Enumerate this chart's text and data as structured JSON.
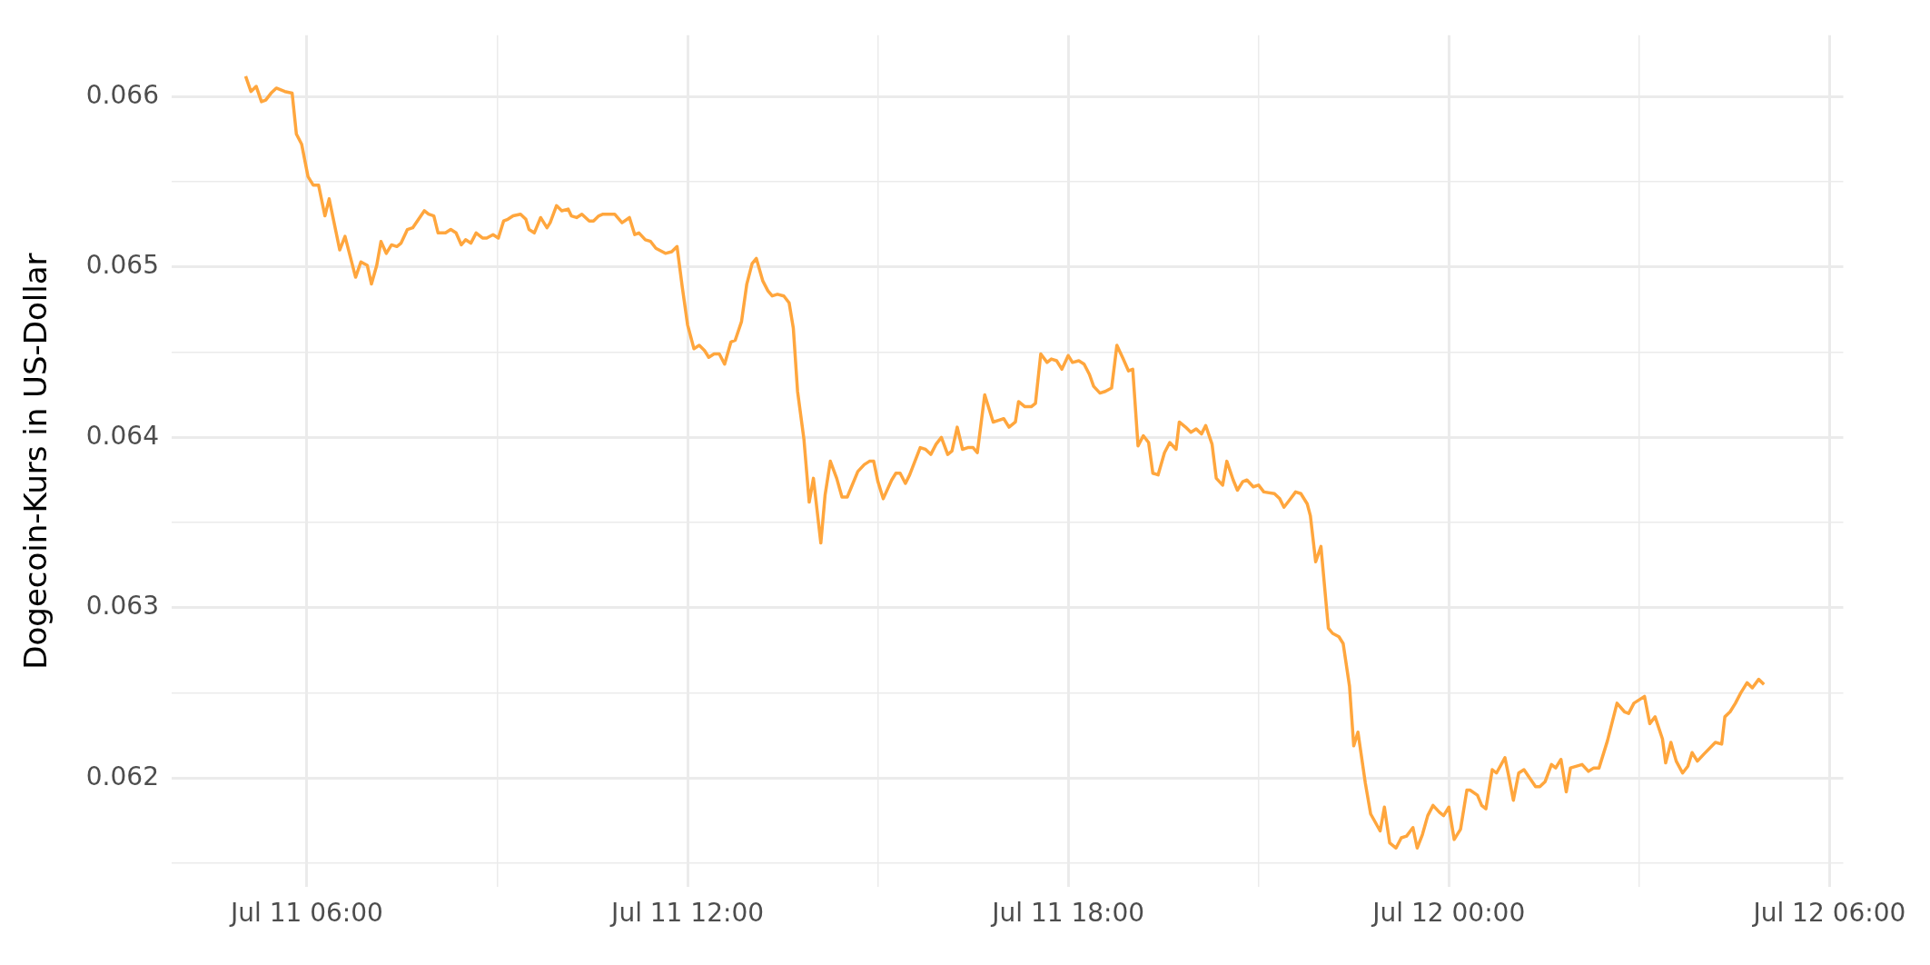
{
  "chart_data": {
    "type": "line",
    "ylabel": "Dogecoin-Kurs in US-Dollar",
    "color": "#ffa63d",
    "grid": true,
    "legend": false,
    "marker": "none",
    "line_style": "solid",
    "xlim": [
      "--07-11T03:52",
      "--07-12T06:13"
    ],
    "xticks": [
      {
        "value": "--07-11T06:00",
        "label": "Jul 11 06:00"
      },
      {
        "value": "--07-11T09:00",
        "label": null
      },
      {
        "value": "--07-11T12:00",
        "label": "Jul 11 12:00"
      },
      {
        "value": "--07-11T15:00",
        "label": null
      },
      {
        "value": "--07-11T18:00",
        "label": "Jul 11 18:00"
      },
      {
        "value": "--07-11T21:00",
        "label": null
      },
      {
        "value": "--07-12T00:00",
        "label": "Jul 12 00:00"
      },
      {
        "value": "--07-12T03:00",
        "label": null
      },
      {
        "value": "--07-12T06:00",
        "label": "Jul 12 06:00"
      }
    ],
    "ylim": [
      0.06136,
      0.06636
    ],
    "yticks": [
      {
        "value": 0.0615,
        "label": null
      },
      0.062,
      {
        "value": 0.0625,
        "label": null
      },
      0.063,
      {
        "value": 0.0635,
        "label": null
      },
      0.064,
      {
        "value": 0.0645,
        "label": null
      },
      0.065,
      {
        "value": 0.0655,
        "label": null
      },
      0.066
    ],
    "x": [
      "--07-11T05:02",
      "--07-11T05:07",
      "--07-11T05:12",
      "--07-11T05:17",
      "--07-11T05:21",
      "--07-11T05:26",
      "--07-11T05:31",
      "--07-11T05:39",
      "--07-11T05:46",
      "--07-11T05:50",
      "--07-11T05:55",
      "--07-11T06:01",
      "--07-11T06:06",
      "--07-11T06:11",
      "--07-11T06:17",
      "--07-11T06:21",
      "--07-11T06:31",
      "--07-11T06:36",
      "--07-11T06:46",
      "--07-11T06:51",
      "--07-11T06:57",
      "--07-11T07:01",
      "--07-11T07:06",
      "--07-11T07:10",
      "--07-11T07:15",
      "--07-11T07:20",
      "--07-11T07:25",
      "--07-11T07:29",
      "--07-11T07:35",
      "--07-11T07:40",
      "--07-11T07:51",
      "--07-11T07:55",
      "--07-11T08:00",
      "--07-11T08:04",
      "--07-11T08:11",
      "--07-11T08:16",
      "--07-11T08:21",
      "--07-11T08:26",
      "--07-11T08:30",
      "--07-11T08:35",
      "--07-11T08:40",
      "--07-11T08:46",
      "--07-11T08:50",
      "--07-11T08:56",
      "--07-11T09:01",
      "--07-11T09:06",
      "--07-11T09:10",
      "--07-11T09:15",
      "--07-11T09:22",
      "--07-11T09:27",
      "--07-11T09:30",
      "--07-11T09:35",
      "--07-11T09:41",
      "--07-11T09:47",
      "--07-11T09:50",
      "--07-11T09:56",
      "--07-11T10:01",
      "--07-11T10:07",
      "--07-11T10:10",
      "--07-11T10:15",
      "--07-11T10:20",
      "--07-11T10:27",
      "--07-11T10:31",
      "--07-11T10:36",
      "--07-11T10:40",
      "--07-11T10:51",
      "--07-11T10:58",
      "--07-11T11:05",
      "--07-11T11:10",
      "--07-11T11:14",
      "--07-11T11:20",
      "--07-11T11:25",
      "--07-11T11:30",
      "--07-11T11:39",
      "--07-11T11:45",
      "--07-11T11:50",
      "--07-11T11:55",
      "--07-11T12:00",
      "--07-11T12:06",
      "--07-11T12:11",
      "--07-11T12:16",
      "--07-11T12:20",
      "--07-11T12:25",
      "--07-11T12:30",
      "--07-11T12:35",
      "--07-11T12:41",
      "--07-11T12:45",
      "--07-11T12:51",
      "--07-11T12:56",
      "--07-11T13:01",
      "--07-11T13:05",
      "--07-11T13:11",
      "--07-11T13:16",
      "--07-11T13:20",
      "--07-11T13:25",
      "--07-11T13:31",
      "--07-11T13:36",
      "--07-11T13:40",
      "--07-11T13:44",
      "--07-11T13:50",
      "--07-11T13:55",
      "--07-11T13:59",
      "--07-11T14:06",
      "--07-11T14:10",
      "--07-11T14:15",
      "--07-11T14:21",
      "--07-11T14:26",
      "--07-11T14:31",
      "--07-11T14:35",
      "--07-11T14:41",
      "--07-11T14:47",
      "--07-11T14:52",
      "--07-11T14:56",
      "--07-11T15:00",
      "--07-11T15:05",
      "--07-11T15:13",
      "--07-11T15:17",
      "--07-11T15:21",
      "--07-11T15:26",
      "--07-11T15:30",
      "--07-11T15:40",
      "--07-11T15:45",
      "--07-11T15:50",
      "--07-11T15:55",
      "--07-11T16:00",
      "--07-11T16:06",
      "--07-11T16:10",
      "--07-11T16:15",
      "--07-11T16:20",
      "--07-11T16:25",
      "--07-11T16:30",
      "--07-11T16:34",
      "--07-11T16:41",
      "--07-11T16:45",
      "--07-11T16:49",
      "--07-11T16:54",
      "--07-11T16:59",
      "--07-11T17:04",
      "--07-11T17:10",
      "--07-11T17:13",
      "--07-11T17:19",
      "--07-11T17:25",
      "--07-11T17:29",
      "--07-11T17:34",
      "--07-11T17:40",
      "--07-11T17:44",
      "--07-11T17:49",
      "--07-11T17:54",
      "--07-11T18:00",
      "--07-11T18:04",
      "--07-11T18:10",
      "--07-11T18:15",
      "--07-11T18:20",
      "--07-11T18:24",
      "--07-11T18:30",
      "--07-11T18:35",
      "--07-11T18:41",
      "--07-11T18:46",
      "--07-11T18:52",
      "--07-11T18:57",
      "--07-11T19:01",
      "--07-11T19:06",
      "--07-11T19:11",
      "--07-11T19:16",
      "--07-11T19:20",
      "--07-11T19:25",
      "--07-11T19:31",
      "--07-11T19:36",
      "--07-11T19:42",
      "--07-11T19:45",
      "--07-11T19:51",
      "--07-11T19:56",
      "--07-11T20:01",
      "--07-11T20:06",
      "--07-11T20:10",
      "--07-11T20:16",
      "--07-11T20:20",
      "--07-11T20:26",
      "--07-11T20:30",
      "--07-11T20:36",
      "--07-11T20:40",
      "--07-11T20:45",
      "--07-11T20:49",
      "--07-11T20:55",
      "--07-11T21:00",
      "--07-11T21:05",
      "--07-11T21:15",
      "--07-11T21:20",
      "--07-11T21:24",
      "--07-11T21:29",
      "--07-11T21:35",
      "--07-11T21:40",
      "--07-11T21:46",
      "--07-11T21:49",
      "--07-11T21:54",
      "--07-11T21:59",
      "--07-11T22:06",
      "--07-11T22:10",
      "--07-11T22:16",
      "--07-11T22:20",
      "--07-11T22:26",
      "--07-11T22:30",
      "--07-11T22:34",
      "--07-11T22:41",
      "--07-11T22:46",
      "--07-11T22:55",
      "--07-11T22:59",
      "--07-11T23:04",
      "--07-11T23:10",
      "--07-11T23:15",
      "--07-11T23:20",
      "--07-11T23:26",
      "--07-11T23:30",
      "--07-11T23:35",
      "--07-11T23:40",
      "--07-11T23:45",
      "--07-11T23:51",
      "--07-11T23:55",
      "--07-12T00:00",
      "--07-12T00:05",
      "--07-12T00:11",
      "--07-12T00:17",
      "--07-12T00:20",
      "--07-12T00:27",
      "--07-12T00:31",
      "--07-12T00:35",
      "--07-12T00:41",
      "--07-12T00:45",
      "--07-12T00:53",
      "--07-12T00:57",
      "--07-12T01:01",
      "--07-12T01:06",
      "--07-12T01:11",
      "--07-12T01:22",
      "--07-12T01:26",
      "--07-12T01:31",
      "--07-12T01:37",
      "--07-12T01:41",
      "--07-12T01:46",
      "--07-12T01:51",
      "--07-12T01:55",
      "--07-12T02:06",
      "--07-12T02:12",
      "--07-12T02:17",
      "--07-12T02:22",
      "--07-12T02:30",
      "--07-12T02:39",
      "--07-12T02:46",
      "--07-12T02:50",
      "--07-12T02:55",
      "--07-12T03:05",
      "--07-12T03:10",
      "--07-12T03:15",
      "--07-12T03:22",
      "--07-12T03:25",
      "--07-12T03:30",
      "--07-12T03:35",
      "--07-12T03:41",
      "--07-12T03:46",
      "--07-12T03:50",
      "--07-12T03:55",
      "--07-12T04:01",
      "--07-12T04:12",
      "--07-12T04:18",
      "--07-12T04:21",
      "--07-12T04:26",
      "--07-12T04:31",
      "--07-12T04:36",
      "--07-12T04:42",
      "--07-12T04:47",
      "--07-12T04:53",
      "--07-12T04:58"
    ],
    "values": [
      0.06612,
      0.06603,
      0.06606,
      0.06597,
      0.06598,
      0.06602,
      0.06605,
      0.06603,
      0.06602,
      0.06578,
      0.06572,
      0.06553,
      0.06548,
      0.06548,
      0.0653,
      0.0654,
      0.0651,
      0.06518,
      0.06494,
      0.06503,
      0.06501,
      0.0649,
      0.06501,
      0.06515,
      0.06508,
      0.06513,
      0.06512,
      0.06514,
      0.06522,
      0.06523,
      0.06533,
      0.06531,
      0.0653,
      0.0652,
      0.0652,
      0.06522,
      0.0652,
      0.06513,
      0.06516,
      0.06514,
      0.0652,
      0.06517,
      0.06517,
      0.06519,
      0.06517,
      0.06527,
      0.06528,
      0.0653,
      0.06531,
      0.06528,
      0.06522,
      0.0652,
      0.06529,
      0.06523,
      0.06526,
      0.06536,
      0.06533,
      0.06534,
      0.0653,
      0.06529,
      0.06531,
      0.06527,
      0.06527,
      0.0653,
      0.06531,
      0.06531,
      0.06526,
      0.06529,
      0.06519,
      0.0652,
      0.06516,
      0.06515,
      0.06511,
      0.06508,
      0.06509,
      0.06512,
      0.06488,
      0.06466,
      0.06452,
      0.06454,
      0.06451,
      0.06447,
      0.06449,
      0.06449,
      0.06443,
      0.06456,
      0.06457,
      0.06468,
      0.0649,
      0.06502,
      0.06505,
      0.06492,
      0.06486,
      0.06483,
      0.06484,
      0.06483,
      0.06479,
      0.06464,
      0.06427,
      0.06399,
      0.06362,
      0.06376,
      0.06338,
      0.06366,
      0.06386,
      0.06376,
      0.06365,
      0.06365,
      0.06371,
      0.0638,
      0.06384,
      0.06386,
      0.06386,
      0.06374,
      0.06364,
      0.06375,
      0.06379,
      0.06379,
      0.06373,
      0.06378,
      0.06394,
      0.06393,
      0.0639,
      0.06396,
      0.064,
      0.0639,
      0.06392,
      0.06406,
      0.06393,
      0.06394,
      0.06394,
      0.06391,
      0.06425,
      0.06417,
      0.06409,
      0.0641,
      0.06411,
      0.06406,
      0.06409,
      0.06421,
      0.06418,
      0.06418,
      0.0642,
      0.06449,
      0.06444,
      0.06446,
      0.06445,
      0.0644,
      0.06448,
      0.06444,
      0.06445,
      0.06443,
      0.06437,
      0.0643,
      0.06426,
      0.06427,
      0.06429,
      0.06454,
      0.06446,
      0.06439,
      0.0644,
      0.06395,
      0.06401,
      0.06397,
      0.06379,
      0.06378,
      0.06391,
      0.06397,
      0.06393,
      0.06409,
      0.06406,
      0.06403,
      0.06405,
      0.06402,
      0.06407,
      0.06396,
      0.06376,
      0.06372,
      0.06386,
      0.06375,
      0.06369,
      0.06374,
      0.06375,
      0.06371,
      0.06372,
      0.06368,
      0.06367,
      0.06364,
      0.06359,
      0.06363,
      0.06368,
      0.06367,
      0.06361,
      0.06354,
      0.06327,
      0.06336,
      0.06288,
      0.06285,
      0.06283,
      0.06279,
      0.06254,
      0.06219,
      0.06227,
      0.06197,
      0.06179,
      0.06169,
      0.06183,
      0.06162,
      0.06159,
      0.06165,
      0.06166,
      0.06171,
      0.06159,
      0.06167,
      0.06178,
      0.06184,
      0.0618,
      0.06178,
      0.06183,
      0.06164,
      0.0617,
      0.06193,
      0.06193,
      0.0619,
      0.06184,
      0.06182,
      0.06205,
      0.06203,
      0.06212,
      0.062,
      0.06187,
      0.06203,
      0.06205,
      0.06195,
      0.06195,
      0.06198,
      0.06208,
      0.06206,
      0.06211,
      0.06192,
      0.06206,
      0.06208,
      0.06204,
      0.06206,
      0.06206,
      0.06222,
      0.06244,
      0.06239,
      0.06238,
      0.06244,
      0.06248,
      0.06232,
      0.06236,
      0.06223,
      0.06209,
      0.06221,
      0.0621,
      0.06203,
      0.06207,
      0.06215,
      0.0621,
      0.06214,
      0.06221,
      0.0622,
      0.06236,
      0.06239,
      0.06244,
      0.0625,
      0.06256,
      0.06253,
      0.06258,
      0.06255
    ]
  }
}
